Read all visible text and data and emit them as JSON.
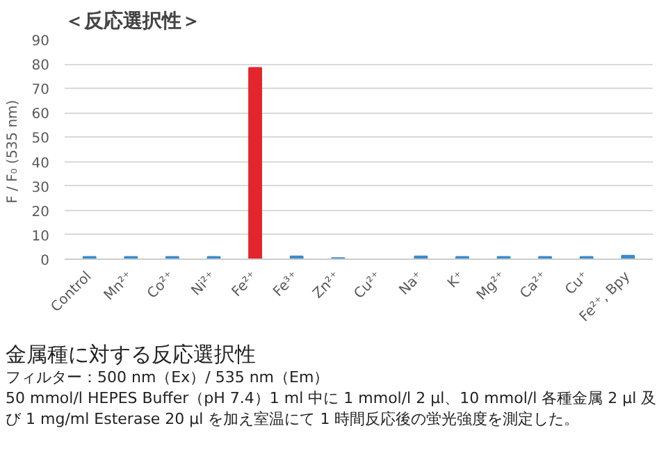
{
  "chart_data": {
    "type": "bar",
    "title": "＜反応選択性＞",
    "ylabel": "F / F₀  (535 nm)",
    "categories": [
      "Control",
      "Mn²⁺",
      "Co²⁺",
      "Ni²⁺",
      "Fe²⁺",
      "Fe³⁺",
      "Zn²⁺",
      "Cu²⁺",
      "Na⁺",
      "K⁺",
      "Mg²⁺",
      "Ca²⁺",
      "Cu⁺",
      "Fe²⁺, Bpy"
    ],
    "values": [
      1,
      1,
      1,
      1,
      78.5,
      1.2,
      0.5,
      0,
      1.2,
      1,
      1,
      1,
      1,
      1.5
    ],
    "colors": [
      "#3a8ccc",
      "#3a8ccc",
      "#3a8ccc",
      "#3a8ccc",
      "#e3262e",
      "#3a8ccc",
      "#3a8ccc",
      "#3a8ccc",
      "#3a8ccc",
      "#3a8ccc",
      "#3a8ccc",
      "#3a8ccc",
      "#3a8ccc",
      "#3a8ccc"
    ],
    "ylim": [
      0,
      90
    ],
    "yticks": [
      0,
      10,
      20,
      30,
      40,
      50,
      60,
      70,
      80,
      90
    ],
    "grid": "y",
    "annotations": [
      "金属種に対する反応選択性",
      "フィルター：500 nm（Ex）/ 535 nm（Em）",
      "50 mmol/l HEPES Buffer（pH 7.4）1 ml 中に 1 mmol/l 2 μl、10 mmol/l 各種金属 2 μl 及び 1 mg/ml Esterase 20 μl を加え室温にて 1 時間反応後の蛍光強度を測定した。"
    ]
  }
}
